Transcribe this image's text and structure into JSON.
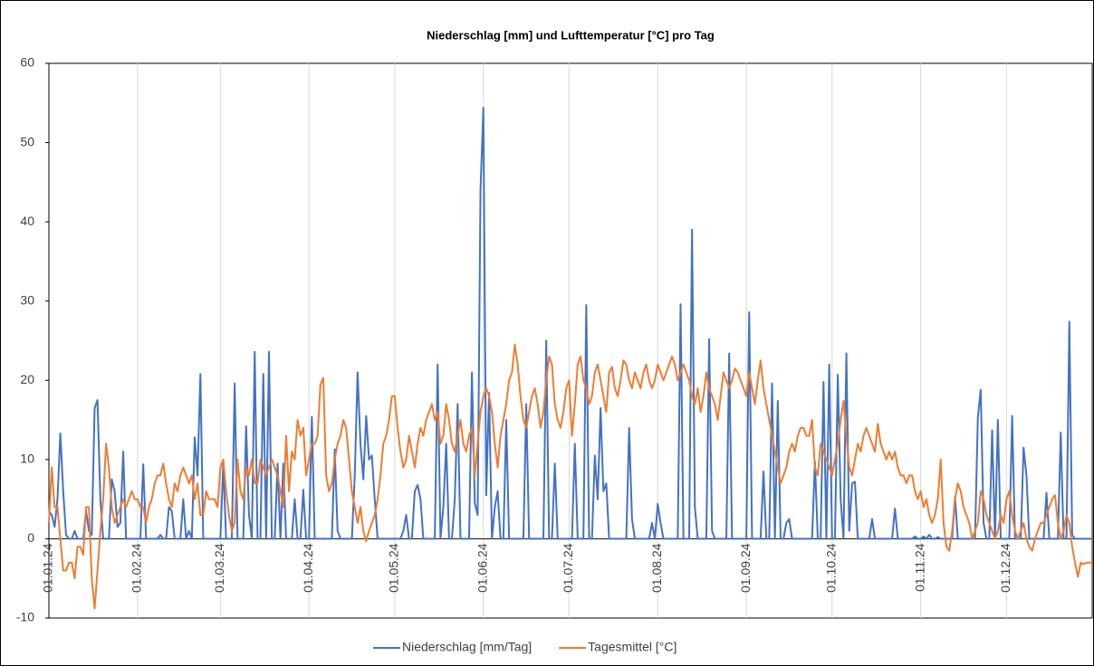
{
  "chart_data": {
    "type": "line",
    "title": "Niederschlag [mm] und Lufttemperatur [°C] pro Tag",
    "categories": [
      "01.01.24",
      null,
      null,
      null,
      null,
      null,
      null,
      null,
      null,
      null,
      null,
      null,
      null,
      null,
      null,
      null,
      null,
      null,
      null,
      null,
      null,
      null,
      null,
      null,
      null,
      null,
      null,
      null,
      null,
      null,
      null,
      "01.02.24",
      null,
      null,
      null,
      null,
      null,
      null,
      null,
      null,
      null,
      null,
      null,
      null,
      null,
      null,
      null,
      null,
      null,
      null,
      null,
      null,
      null,
      null,
      null,
      null,
      null,
      null,
      null,
      null,
      "01.03.24",
      null,
      null,
      null,
      null,
      null,
      null,
      null,
      null,
      null,
      null,
      null,
      null,
      null,
      null,
      null,
      null,
      null,
      null,
      null,
      null,
      null,
      null,
      null,
      null,
      null,
      null,
      null,
      null,
      null,
      null,
      "01.04.24",
      null,
      null,
      null,
      null,
      null,
      null,
      null,
      null,
      null,
      null,
      null,
      null,
      null,
      null,
      null,
      null,
      null,
      null,
      null,
      null,
      null,
      null,
      null,
      null,
      null,
      null,
      null,
      null,
      null,
      "01.05.24",
      null,
      null,
      null,
      null,
      null,
      null,
      null,
      null,
      null,
      null,
      null,
      null,
      null,
      null,
      null,
      null,
      null,
      null,
      null,
      null,
      null,
      null,
      null,
      null,
      null,
      null,
      null,
      null,
      null,
      null,
      "01.06.24",
      null,
      null,
      null,
      null,
      null,
      null,
      null,
      null,
      null,
      null,
      null,
      null,
      null,
      null,
      null,
      null,
      null,
      null,
      null,
      null,
      null,
      null,
      null,
      null,
      null,
      null,
      null,
      null,
      null,
      "01.07.24",
      null,
      null,
      null,
      null,
      null,
      null,
      null,
      null,
      null,
      null,
      null,
      null,
      null,
      null,
      null,
      null,
      null,
      null,
      null,
      null,
      null,
      null,
      null,
      null,
      null,
      null,
      null,
      null,
      null,
      null,
      "01.08.24",
      null,
      null,
      null,
      null,
      null,
      null,
      null,
      null,
      null,
      null,
      null,
      null,
      null,
      null,
      null,
      null,
      null,
      null,
      null,
      null,
      null,
      null,
      null,
      null,
      null,
      null,
      null,
      null,
      null,
      null,
      "01.09.24",
      null,
      null,
      null,
      null,
      null,
      null,
      null,
      null,
      null,
      null,
      null,
      null,
      null,
      null,
      null,
      null,
      null,
      null,
      null,
      null,
      null,
      null,
      null,
      null,
      null,
      null,
      null,
      null,
      null,
      "01.10.24",
      null,
      null,
      null,
      null,
      null,
      null,
      null,
      null,
      null,
      null,
      null,
      null,
      null,
      null,
      null,
      null,
      null,
      null,
      null,
      null,
      null,
      null,
      null,
      null,
      null,
      null,
      null,
      null,
      null,
      null,
      "01.11.24",
      null,
      null,
      null,
      null,
      null,
      null,
      null,
      null,
      null,
      null,
      null,
      null,
      null,
      null,
      null,
      null,
      null,
      null,
      null,
      null,
      null,
      null,
      null,
      null,
      null,
      null,
      null,
      null,
      null,
      "01.12.24",
      null,
      null,
      null,
      null,
      null,
      null,
      null,
      null,
      null,
      null,
      null,
      null,
      null,
      null,
      null,
      null,
      null,
      null,
      null,
      null,
      null,
      null,
      null,
      null,
      null,
      null,
      null,
      null,
      null,
      null
    ],
    "series": [
      {
        "name": "Niederschlag [mm/Tag]",
        "color": "#4472c4",
        "values": [
          3.5,
          3,
          1.5,
          5,
          13.3,
          6,
          0.5,
          0,
          0,
          1,
          0,
          0,
          0,
          3.5,
          1,
          0.5,
          16.5,
          17.5,
          5,
          0,
          0,
          0,
          7.5,
          6,
          1.5,
          2,
          11,
          0,
          0,
          0,
          0,
          0,
          0,
          9.4,
          0,
          0,
          0,
          0,
          0,
          0.5,
          0,
          0,
          4,
          3.5,
          0,
          0,
          0,
          5,
          0,
          1,
          0,
          12.8,
          8,
          20.8,
          0,
          0,
          0,
          0,
          0,
          0,
          0,
          9.5,
          0,
          0,
          0,
          19.6,
          0,
          0,
          0,
          14.2,
          3,
          0,
          23.6,
          0,
          0,
          20.8,
          0,
          23.6,
          0,
          0,
          9.5,
          0,
          9.5,
          0,
          0,
          0,
          5,
          0,
          0,
          6.2,
          0,
          0,
          15.4,
          0,
          0,
          0,
          0,
          0,
          0,
          0,
          11.3,
          1,
          0,
          0,
          0,
          0,
          0,
          8,
          21,
          12,
          7.5,
          15.5,
          10,
          10.5,
          5,
          0,
          0,
          0,
          0,
          0,
          0,
          0,
          0,
          0,
          1,
          3,
          0,
          0,
          6,
          6.8,
          5,
          0,
          0,
          0,
          0,
          0,
          22,
          0,
          4,
          12,
          0,
          0,
          5,
          17,
          0,
          0,
          0,
          0,
          21,
          4.5,
          3,
          44,
          54.4,
          5.5,
          18.4,
          0,
          4,
          6,
          0,
          0,
          15,
          0,
          0,
          0,
          0,
          0,
          0,
          17,
          0,
          0,
          0,
          0,
          0,
          0,
          25,
          0,
          0,
          9.5,
          0,
          0,
          0,
          0,
          0,
          0,
          12,
          0,
          0,
          0,
          29.5,
          0,
          0,
          10.5,
          5,
          16.5,
          6,
          7,
          0,
          0,
          0,
          0,
          0,
          0,
          0,
          14,
          2.5,
          0,
          0,
          0,
          0,
          0,
          0,
          2,
          0,
          4.4,
          2,
          0,
          0,
          0,
          0,
          0,
          0,
          29.6,
          0,
          0,
          0,
          39,
          4,
          0,
          0,
          0,
          0,
          25.2,
          1,
          0,
          0,
          0,
          0,
          0,
          23.4,
          0,
          0,
          0,
          0,
          0,
          0,
          28.6,
          0,
          0,
          0,
          0,
          8.5,
          0,
          0,
          19.6,
          0,
          17.4,
          0,
          0,
          2,
          2.5,
          0,
          0,
          0,
          0,
          0,
          0,
          0,
          0,
          9.8,
          0,
          0,
          19.8,
          0,
          22,
          0,
          0,
          20.7,
          5,
          0,
          23.4,
          1,
          7,
          7.2,
          0,
          0,
          0,
          0,
          0,
          2.5,
          0,
          0,
          0,
          0,
          0,
          0,
          0,
          3.8,
          0,
          0,
          0,
          0,
          0,
          0,
          0.3,
          0,
          0,
          0.3,
          0,
          0.5,
          0,
          0,
          0.2,
          0,
          0,
          0,
          0,
          0,
          5.3,
          0,
          0,
          0,
          0,
          0,
          0,
          0,
          15.3,
          18.8,
          2,
          0,
          0,
          13.7,
          0,
          15,
          0,
          0,
          0,
          0,
          15.5,
          0,
          0,
          0,
          11.5,
          8,
          0,
          0,
          0,
          0,
          0,
          0,
          5.8,
          0,
          0,
          0,
          0,
          13.4,
          0,
          0,
          27.4,
          0.5,
          0,
          0,
          0,
          0,
          0,
          0,
          0
        ]
      },
      {
        "name": "Tagesmittel [°C]",
        "color": "#ed7d31",
        "values": [
          2,
          9,
          4,
          4,
          0,
          -4,
          -4,
          -3,
          -3,
          -5,
          -1,
          -1,
          -2,
          4,
          4,
          -5,
          -8.8,
          -4,
          1,
          5,
          12,
          9,
          4,
          2,
          3,
          4,
          5,
          4,
          5,
          6,
          5,
          5,
          4,
          4,
          2,
          4,
          5,
          7,
          8,
          8,
          9.5,
          7,
          5,
          4,
          7,
          6,
          8,
          9,
          8,
          7,
          8,
          5,
          7,
          3,
          3,
          6,
          5,
          5,
          5,
          4,
          9,
          10,
          6,
          3,
          1,
          2,
          10,
          6,
          5,
          9,
          8,
          10,
          7,
          7,
          10,
          9,
          8,
          9,
          10,
          9,
          8,
          6,
          4,
          13,
          6,
          11,
          10,
          15,
          13,
          14,
          8,
          10,
          12,
          12,
          13,
          19.5,
          20.3,
          8,
          6,
          7,
          10,
          12,
          13,
          15,
          14,
          10,
          6,
          4,
          2,
          4,
          1,
          -0.3,
          1,
          2,
          3,
          5,
          8,
          12,
          13,
          15,
          18,
          18,
          14,
          11,
          9,
          10,
          13,
          11,
          9,
          12,
          14,
          13,
          15,
          16,
          17,
          15,
          16,
          12,
          13,
          17,
          15,
          12,
          11,
          13,
          15,
          12,
          11,
          13,
          14,
          8,
          12,
          16,
          18,
          19,
          18,
          16,
          12,
          9,
          13,
          15,
          17,
          20,
          21,
          24.5,
          22,
          18,
          15,
          14,
          16,
          18,
          19,
          17,
          14,
          16,
          20,
          23,
          22,
          17,
          15,
          14,
          16,
          19,
          20,
          13,
          17,
          22,
          23,
          20,
          19,
          17,
          18,
          21,
          22,
          20,
          18,
          16,
          21,
          21.7,
          19,
          18,
          20,
          22.5,
          22,
          20,
          19,
          21,
          20,
          19,
          21,
          22,
          20,
          19,
          20,
          22,
          21,
          20,
          21,
          22,
          23,
          22,
          20,
          21,
          22,
          21,
          20,
          18,
          17,
          19,
          16,
          18,
          21,
          19,
          18,
          17,
          15,
          18,
          21,
          20,
          19,
          20,
          21.5,
          21,
          20,
          19,
          18,
          21,
          19,
          17,
          20,
          22.5,
          19,
          17,
          15,
          13,
          11,
          9,
          7,
          8,
          9,
          11,
          12,
          11,
          13,
          14,
          14,
          13,
          13,
          15,
          9,
          8,
          12,
          11,
          10,
          9,
          8,
          10,
          12,
          15,
          17.4,
          13,
          9,
          8,
          10,
          12,
          11,
          13,
          14,
          13,
          12,
          11,
          14.5,
          12,
          11,
          10,
          11,
          10,
          11,
          9,
          8,
          8,
          7,
          8,
          8,
          6,
          5,
          6,
          4,
          5,
          3,
          2,
          3,
          5,
          10,
          2,
          -1,
          -1.5,
          1,
          5,
          7,
          6,
          4,
          3,
          2,
          0,
          1,
          2,
          6,
          5,
          3,
          2,
          1,
          0,
          1,
          3,
          2,
          5,
          6,
          3,
          1,
          0,
          1,
          2,
          0,
          -1,
          -1.5,
          0,
          1,
          2,
          2,
          3,
          4,
          5,
          5.5,
          2,
          0,
          1,
          3,
          2,
          -1,
          -3,
          -4.8,
          -3,
          -3.2,
          -3,
          -3,
          -3
        ]
      }
    ],
    "ylim": [
      -10,
      60
    ],
    "yticks": [
      -10,
      0,
      10,
      20,
      30,
      40,
      50,
      60
    ],
    "x_grid": true,
    "legend": "bottom"
  }
}
